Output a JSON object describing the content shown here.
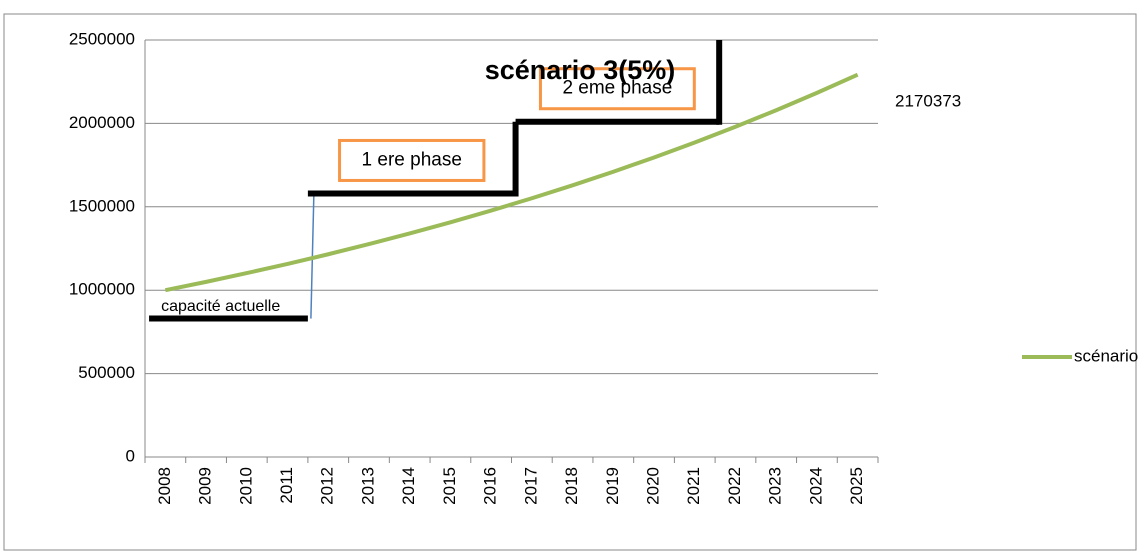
{
  "chart_data": {
    "type": "line",
    "title": "scénario 3(5%)",
    "categories": [
      "2008",
      "2009",
      "2010",
      "2011",
      "2012",
      "2013",
      "2014",
      "2015",
      "2016",
      "2017",
      "2018",
      "2019",
      "2020",
      "2021",
      "2022",
      "2023",
      "2024",
      "2025"
    ],
    "series": [
      {
        "name": "scénario 3(5%)",
        "color": "#9bbb59",
        "values": [
          1000000,
          1050000,
          1102500,
          1157625,
          1215506,
          1276282,
          1340096,
          1407100,
          1477455,
          1551328,
          1628895,
          1710339,
          1795856,
          1885649,
          1979932,
          2078928,
          2182875,
          2292018
        ]
      }
    ],
    "ylim": [
      0,
      2500000
    ],
    "yticks": [
      0,
      500000,
      1000000,
      1500000,
      2000000,
      2500000
    ],
    "grid": true,
    "legend": "right",
    "steps": [
      {
        "text": "capacité actuelle",
        "value": 830000,
        "x_start": 2007.6,
        "x_end": 2011.5
      },
      {
        "text": "1 ere phase",
        "value": 1580000,
        "x_start": 2011.5,
        "x_end": 2016.6
      },
      {
        "text": "2 eme phase",
        "value": 2010000,
        "x_start": 2016.6,
        "x_end": 2021.6
      }
    ],
    "annotations": [
      {
        "text": "2170373"
      }
    ]
  }
}
